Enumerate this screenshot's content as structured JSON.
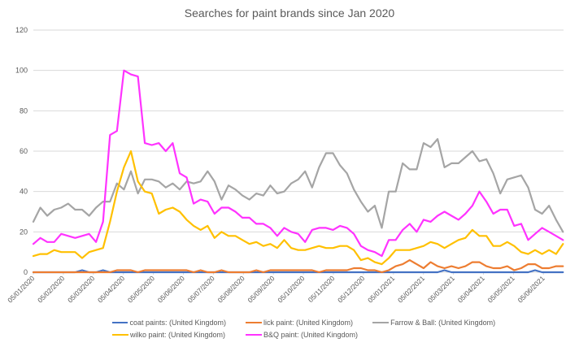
{
  "chart_data": {
    "type": "line",
    "title": "Searches for paint brands since Jan 2020",
    "xlabel": "",
    "ylabel": "",
    "ylim": [
      0,
      120
    ],
    "yticks": [
      0,
      20,
      40,
      60,
      80,
      100,
      120
    ],
    "grid": true,
    "legend_position": "bottom",
    "x_tick_labels": [
      "05/01/2020",
      "05/02/2020",
      "05/03/2020",
      "05/04/2020",
      "05/05/2020",
      "05/06/2020",
      "05/07/2020",
      "05/08/2020",
      "05/09/2020",
      "05/10/2020",
      "05/11/2020",
      "05/12/2020",
      "05/01/2021",
      "05/02/2021",
      "05/03/2021",
      "05/04/2021",
      "05/05/2021",
      "05/06/2021"
    ],
    "x_interval": "weekly",
    "series": [
      {
        "name": "coat paints: (United Kingdom)",
        "color": "#4472c4",
        "values": [
          0,
          0,
          0,
          0,
          0,
          0,
          0,
          1,
          0,
          0,
          1,
          0,
          0,
          0,
          0,
          0,
          0,
          0,
          0,
          0,
          0,
          0,
          0,
          0,
          0,
          0,
          0,
          0,
          0,
          0,
          0,
          0,
          0,
          0,
          0,
          0,
          0,
          0,
          0,
          0,
          0,
          0,
          0,
          0,
          0,
          0,
          0,
          0,
          0,
          0,
          0,
          0,
          0,
          0,
          0,
          0,
          0,
          0,
          0,
          1,
          0,
          0,
          0,
          0,
          0,
          0,
          0,
          0,
          0,
          0,
          0,
          0,
          1,
          0,
          0,
          0,
          0
        ]
      },
      {
        "name": "lick paint: (United Kingdom)",
        "color": "#ed7d31",
        "values": [
          0,
          0,
          0,
          0,
          0,
          0,
          0,
          0,
          0,
          0,
          0,
          0,
          1,
          1,
          1,
          0,
          1,
          1,
          1,
          1,
          1,
          1,
          1,
          0,
          1,
          0,
          0,
          1,
          0,
          0,
          0,
          0,
          1,
          0,
          1,
          1,
          1,
          1,
          1,
          1,
          1,
          0,
          1,
          1,
          1,
          1,
          2,
          2,
          1,
          1,
          0,
          1,
          3,
          4,
          6,
          4,
          2,
          5,
          3,
          2,
          3,
          2,
          3,
          5,
          5,
          3,
          2,
          2,
          3,
          1,
          2,
          4,
          4,
          2,
          2,
          3,
          3
        ]
      },
      {
        "name": "Farrow & Ball: (United Kingdom)",
        "color": "#a5a5a5",
        "values": [
          25,
          32,
          28,
          31,
          32,
          34,
          31,
          31,
          28,
          32,
          35,
          35,
          44,
          41,
          50,
          39,
          46,
          46,
          45,
          42,
          44,
          41,
          45,
          44,
          45,
          50,
          45,
          36,
          43,
          41,
          38,
          36,
          39,
          38,
          43,
          39,
          40,
          44,
          46,
          50,
          42,
          52,
          59,
          59,
          53,
          49,
          41,
          35,
          30,
          33,
          22,
          40,
          40,
          54,
          51,
          51,
          64,
          62,
          66,
          52,
          54,
          54,
          57,
          60,
          55,
          56,
          49,
          39,
          46,
          47,
          48,
          42,
          31,
          29,
          33,
          26,
          20
        ]
      },
      {
        "name": "wilko paint: (United Kingdom)",
        "color": "#ffc000",
        "values": [
          8,
          9,
          9,
          11,
          10,
          10,
          10,
          7,
          10,
          11,
          12,
          25,
          40,
          52,
          60,
          45,
          40,
          39,
          29,
          31,
          32,
          30,
          26,
          23,
          21,
          23,
          17,
          20,
          18,
          18,
          16,
          14,
          15,
          13,
          14,
          12,
          16,
          12,
          11,
          11,
          12,
          13,
          12,
          12,
          13,
          13,
          11,
          6,
          7,
          5,
          4,
          7,
          11,
          11,
          11,
          12,
          13,
          15,
          14,
          12,
          14,
          16,
          17,
          21,
          18,
          18,
          13,
          13,
          15,
          13,
          10,
          9,
          11,
          9,
          11,
          9,
          14
        ]
      },
      {
        "name": "B&Q paint: (United Kingdom)",
        "color": "#ff33ff",
        "values": [
          14,
          17,
          15,
          15,
          19,
          18,
          17,
          18,
          19,
          15,
          25,
          68,
          70,
          100,
          98,
          97,
          64,
          63,
          64,
          60,
          64,
          49,
          47,
          34,
          36,
          35,
          29,
          32,
          32,
          30,
          27,
          27,
          24,
          24,
          22,
          18,
          22,
          20,
          19,
          15,
          21,
          22,
          22,
          21,
          23,
          22,
          19,
          13,
          11,
          10,
          8,
          16,
          16,
          21,
          24,
          20,
          26,
          25,
          28,
          30,
          28,
          26,
          29,
          33,
          40,
          35,
          29,
          31,
          31,
          23,
          24,
          16,
          19,
          22,
          20,
          18,
          16
        ]
      }
    ]
  }
}
